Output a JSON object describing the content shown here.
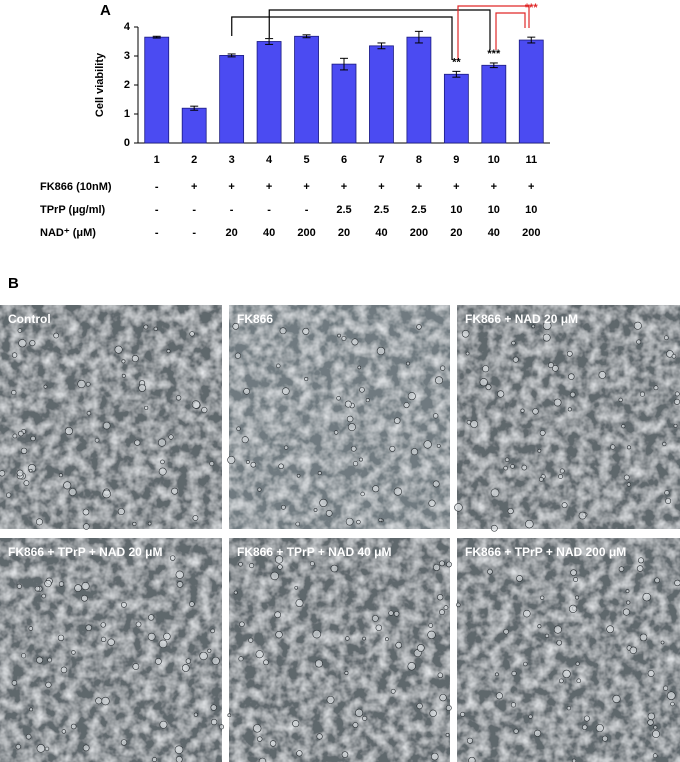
{
  "chart_data": {
    "type": "bar",
    "panel_label": "A",
    "ylabel": "Cell viability",
    "categories": [
      "1",
      "2",
      "3",
      "4",
      "5",
      "6",
      "7",
      "8",
      "9",
      "10",
      "11"
    ],
    "values": [
      3.65,
      1.2,
      3.02,
      3.5,
      3.68,
      2.72,
      3.35,
      3.65,
      2.37,
      2.68,
      3.55
    ],
    "errors": [
      0.03,
      0.07,
      0.05,
      0.1,
      0.05,
      0.2,
      0.1,
      0.2,
      0.1,
      0.08,
      0.1
    ],
    "color": "#4b4bf2",
    "ylim": [
      0,
      4
    ],
    "yticks": [
      0,
      1,
      2,
      3,
      4
    ],
    "grid": false,
    "annotations": [
      {
        "text": "**",
        "category": "9",
        "color": "#000000"
      },
      {
        "text": "***",
        "category": "10",
        "color": "#000000"
      },
      {
        "text": "***",
        "category": "11",
        "color": "#e02828"
      }
    ]
  },
  "treatment_table": {
    "rows": [
      {
        "label": "FK866 (10nM)",
        "cells": [
          "-",
          "+",
          "+",
          "+",
          "+",
          "+",
          "+",
          "+",
          "+",
          "+",
          "+"
        ]
      },
      {
        "label": "TPrP (μg/ml)",
        "cells": [
          "-",
          "-",
          "-",
          "-",
          "-",
          "2.5",
          "2.5",
          "2.5",
          "10",
          "10",
          "10"
        ]
      },
      {
        "label": "NAD⁺ (μM)",
        "cells": [
          "-",
          "-",
          "20",
          "40",
          "200",
          "20",
          "40",
          "200",
          "20",
          "40",
          "200"
        ]
      }
    ]
  },
  "panel_b": {
    "panel_label": "B",
    "images": [
      "Control",
      "FK866",
      "FK866 + NAD 20 μM",
      "FK866 + TPrP + NAD 20 μM",
      "FK866 + TPrP + NAD 40 μM",
      "FK866 + TPrP + NAD 200 μM"
    ]
  }
}
